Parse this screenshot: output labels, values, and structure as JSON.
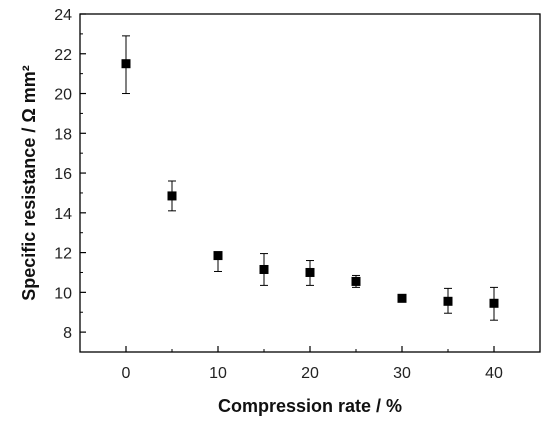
{
  "chart_data": {
    "type": "scatter",
    "xlabel": "Compression rate / %",
    "ylabel": "Specific resistance / Ω mm²",
    "xlim": [
      -5,
      45
    ],
    "ylim": [
      7,
      24
    ],
    "x_ticks": [
      0,
      10,
      20,
      30,
      40
    ],
    "y_ticks": [
      8,
      10,
      12,
      14,
      16,
      18,
      20,
      22,
      24
    ],
    "grid": false,
    "series": [
      {
        "marker": "square",
        "color": "#000000",
        "points": [
          {
            "x": 0,
            "y": 21.5,
            "err_low": 20.0,
            "err_high": 22.9
          },
          {
            "x": 5,
            "y": 14.85,
            "err_low": 14.1,
            "err_high": 15.6
          },
          {
            "x": 10,
            "y": 11.85,
            "err_low": 11.05,
            "err_high": 11.9
          },
          {
            "x": 15,
            "y": 11.15,
            "err_low": 10.35,
            "err_high": 11.95
          },
          {
            "x": 20,
            "y": 11.0,
            "err_low": 10.35,
            "err_high": 11.6
          },
          {
            "x": 25,
            "y": 10.55,
            "err_low": 10.25,
            "err_high": 10.85
          },
          {
            "x": 30,
            "y": 9.7,
            "err_low": 9.6,
            "err_high": 9.85
          },
          {
            "x": 35,
            "y": 9.55,
            "err_low": 8.95,
            "err_high": 10.2
          },
          {
            "x": 40,
            "y": 9.45,
            "err_low": 8.6,
            "err_high": 10.25
          }
        ]
      }
    ]
  }
}
